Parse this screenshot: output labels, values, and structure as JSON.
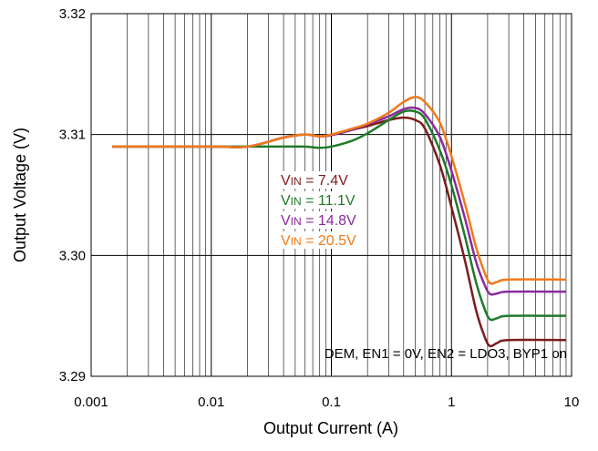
{
  "chart_data": {
    "type": "line",
    "xlabel": "Output Current (A)",
    "ylabel": "Output Voltage (V)",
    "x_scale": "log",
    "xlim": [
      0.001,
      10
    ],
    "ylim": [
      3.29,
      3.32
    ],
    "x_ticks": [
      0.001,
      0.01,
      0.1,
      1,
      10
    ],
    "x_tick_labels": [
      "0.001",
      "0.01",
      "0.1",
      "1",
      "10"
    ],
    "y_ticks": [
      3.29,
      3.3,
      3.31,
      3.32
    ],
    "y_tick_labels": [
      "3.29",
      "3.30",
      "3.31",
      "3.32"
    ],
    "grid": true,
    "annotation": "DEM, EN1 = 0V, EN2 = LDO3, BYP1 on",
    "series": [
      {
        "name_main": "V",
        "name_sub": "IN",
        "name_rest": " = 7.4V",
        "color": "#7b1c1c",
        "points": [
          [
            0.0015,
            3.309
          ],
          [
            0.01,
            3.309
          ],
          [
            0.02,
            3.309
          ],
          [
            0.04,
            3.30975
          ],
          [
            0.06,
            3.31
          ],
          [
            0.08,
            3.30985
          ],
          [
            0.1,
            3.30995
          ],
          [
            0.15,
            3.3104
          ],
          [
            0.2,
            3.3107
          ],
          [
            0.3,
            3.3112
          ],
          [
            0.4,
            3.3114
          ],
          [
            0.5,
            3.3112
          ],
          [
            0.6,
            3.3105
          ],
          [
            0.8,
            3.3075
          ],
          [
            1.0,
            3.304
          ],
          [
            1.3,
            3.2995
          ],
          [
            1.6,
            3.2955
          ],
          [
            1.9,
            3.2932
          ],
          [
            2.1,
            3.2925
          ],
          [
            2.4,
            3.29275
          ],
          [
            3.0,
            3.293
          ],
          [
            9.0,
            3.293
          ]
        ]
      },
      {
        "name_main": "V",
        "name_sub": "IN",
        "name_rest": " = 11.1V",
        "color": "#1f7a2a",
        "points": [
          [
            0.0015,
            3.309
          ],
          [
            0.01,
            3.309
          ],
          [
            0.02,
            3.309
          ],
          [
            0.04,
            3.309
          ],
          [
            0.06,
            3.309
          ],
          [
            0.08,
            3.3089
          ],
          [
            0.1,
            3.309
          ],
          [
            0.15,
            3.3095
          ],
          [
            0.2,
            3.3101
          ],
          [
            0.3,
            3.3112
          ],
          [
            0.4,
            3.3119
          ],
          [
            0.5,
            3.3119
          ],
          [
            0.6,
            3.3113
          ],
          [
            0.8,
            3.3087
          ],
          [
            1.0,
            3.3058
          ],
          [
            1.3,
            3.3015
          ],
          [
            1.6,
            3.2978
          ],
          [
            1.9,
            3.2955
          ],
          [
            2.1,
            3.2947
          ],
          [
            2.4,
            3.2948
          ],
          [
            3.0,
            3.295
          ],
          [
            9.0,
            3.295
          ]
        ]
      },
      {
        "name_main": "V",
        "name_sub": "IN",
        "name_rest": " = 14.8V",
        "color": "#8a2a9e",
        "points": [
          [
            0.0015,
            3.309
          ],
          [
            0.01,
            3.309
          ],
          [
            0.02,
            3.309
          ],
          [
            0.04,
            3.30975
          ],
          [
            0.06,
            3.31
          ],
          [
            0.08,
            3.30985
          ],
          [
            0.1,
            3.30995
          ],
          [
            0.15,
            3.3104
          ],
          [
            0.2,
            3.31085
          ],
          [
            0.3,
            3.3115
          ],
          [
            0.4,
            3.3121
          ],
          [
            0.5,
            3.3122
          ],
          [
            0.6,
            3.3117
          ],
          [
            0.8,
            3.3098
          ],
          [
            1.0,
            3.307
          ],
          [
            1.3,
            3.303
          ],
          [
            1.6,
            3.2995
          ],
          [
            1.9,
            3.2975
          ],
          [
            2.1,
            3.2968
          ],
          [
            2.4,
            3.29685
          ],
          [
            3.0,
            3.297
          ],
          [
            9.0,
            3.297
          ]
        ]
      },
      {
        "name_main": "V",
        "name_sub": "IN",
        "name_rest": " = 20.5V",
        "color": "#f07a1a",
        "points": [
          [
            0.0015,
            3.309
          ],
          [
            0.01,
            3.309
          ],
          [
            0.02,
            3.309
          ],
          [
            0.04,
            3.30975
          ],
          [
            0.06,
            3.31
          ],
          [
            0.08,
            3.30985
          ],
          [
            0.1,
            3.31
          ],
          [
            0.15,
            3.3105
          ],
          [
            0.2,
            3.3109
          ],
          [
            0.3,
            3.3118
          ],
          [
            0.4,
            3.3127
          ],
          [
            0.5,
            3.3131
          ],
          [
            0.6,
            3.3127
          ],
          [
            0.8,
            3.311
          ],
          [
            1.0,
            3.3082
          ],
          [
            1.3,
            3.3042
          ],
          [
            1.6,
            3.3007
          ],
          [
            1.9,
            3.2985
          ],
          [
            2.1,
            3.2977
          ],
          [
            2.4,
            3.2978
          ],
          [
            3.0,
            3.298
          ],
          [
            9.0,
            3.298
          ]
        ]
      }
    ]
  }
}
